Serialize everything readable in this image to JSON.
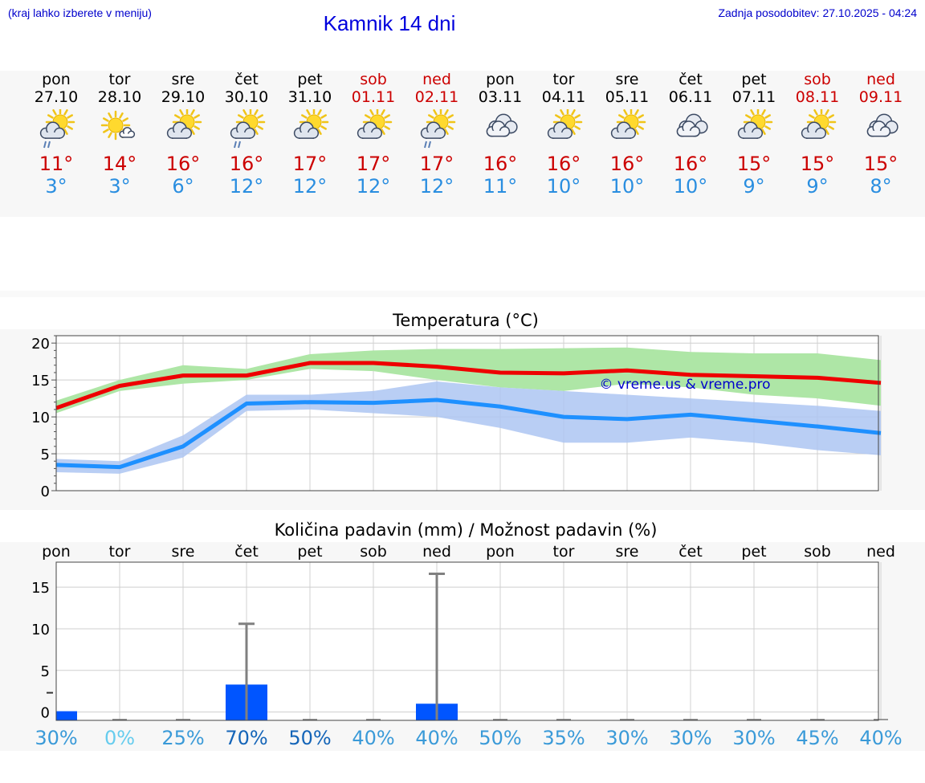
{
  "header": {
    "note": "(kraj lahko izberete v meniju)",
    "title": "Kamnik 14 dni",
    "updated": "Zadnja posodobitev: 27.10.2025 - 04:24"
  },
  "days": [
    {
      "name": "pon",
      "date": "27.10",
      "weekend": false,
      "icon": "partly-sunny-drizzle-icon",
      "tmax": "11°",
      "tmin": "3°"
    },
    {
      "name": "tor",
      "date": "28.10",
      "weekend": false,
      "icon": "sun-small-cloud-icon",
      "tmax": "14°",
      "tmin": "3°"
    },
    {
      "name": "sre",
      "date": "29.10",
      "weekend": false,
      "icon": "partly-sunny-icon",
      "tmax": "16°",
      "tmin": "6°"
    },
    {
      "name": "čet",
      "date": "30.10",
      "weekend": false,
      "icon": "partly-sunny-drizzle-icon",
      "tmax": "16°",
      "tmin": "12°"
    },
    {
      "name": "pet",
      "date": "31.10",
      "weekend": false,
      "icon": "partly-sunny-icon",
      "tmax": "17°",
      "tmin": "12°"
    },
    {
      "name": "sob",
      "date": "01.11",
      "weekend": true,
      "icon": "partly-sunny-icon",
      "tmax": "17°",
      "tmin": "12°"
    },
    {
      "name": "ned",
      "date": "02.11",
      "weekend": true,
      "icon": "partly-sunny-drizzle-icon",
      "tmax": "17°",
      "tmin": "12°"
    },
    {
      "name": "pon",
      "date": "03.11",
      "weekend": false,
      "icon": "cloudy-icon",
      "tmax": "16°",
      "tmin": "11°"
    },
    {
      "name": "tor",
      "date": "04.11",
      "weekend": false,
      "icon": "partly-sunny-icon",
      "tmax": "16°",
      "tmin": "10°"
    },
    {
      "name": "sre",
      "date": "05.11",
      "weekend": false,
      "icon": "partly-sunny-icon",
      "tmax": "16°",
      "tmin": "10°"
    },
    {
      "name": "čet",
      "date": "06.11",
      "weekend": false,
      "icon": "cloudy-icon",
      "tmax": "16°",
      "tmin": "10°"
    },
    {
      "name": "pet",
      "date": "07.11",
      "weekend": false,
      "icon": "partly-sunny-icon",
      "tmax": "15°",
      "tmin": "9°"
    },
    {
      "name": "sob",
      "date": "08.11",
      "weekend": true,
      "icon": "partly-sunny-icon",
      "tmax": "15°",
      "tmin": "9°"
    },
    {
      "name": "ned",
      "date": "09.11",
      "weekend": true,
      "icon": "cloudy-icon",
      "tmax": "15°",
      "tmin": "8°"
    }
  ],
  "chart_data": [
    {
      "type": "line",
      "title": "Temperatura (°C)",
      "xlabel": "",
      "ylabel": "",
      "ylim": [
        0,
        21
      ],
      "yticks": [
        0,
        5,
        10,
        15,
        20
      ],
      "x": [
        0,
        1,
        2,
        3,
        4,
        5,
        6,
        7,
        8,
        9,
        10,
        11,
        12,
        13
      ],
      "watermark": "© vreme.us & vreme.pro",
      "colors": {
        "max": "#ee0000",
        "min": "#1e90ff",
        "max_band": "#aee6a6",
        "min_band": "#adc6f2",
        "overlap": "#7fb8a8"
      },
      "series": [
        {
          "name": "max",
          "values": [
            11.2,
            14.2,
            15.6,
            15.6,
            17.3,
            17.3,
            16.8,
            16.0,
            15.9,
            16.3,
            15.7,
            15.5,
            15.3,
            14.6
          ]
        },
        {
          "name": "min",
          "values": [
            3.5,
            3.2,
            6.0,
            11.8,
            12.0,
            11.9,
            12.3,
            11.4,
            10.0,
            9.7,
            10.3,
            9.5,
            8.7,
            7.8
          ]
        }
      ],
      "bands": [
        {
          "name": "max_range",
          "lower": [
            10.5,
            13.5,
            14.5,
            15.0,
            16.5,
            16.2,
            15.0,
            14.0,
            13.5,
            14.5,
            14.0,
            13.0,
            12.5,
            11.5
          ],
          "upper": [
            12.2,
            15.0,
            17.0,
            16.5,
            18.5,
            19.0,
            19.2,
            19.2,
            19.3,
            19.4,
            18.8,
            18.6,
            18.6,
            17.7
          ]
        },
        {
          "name": "min_range",
          "lower": [
            2.5,
            2.3,
            4.5,
            10.8,
            11.0,
            10.5,
            10.0,
            8.5,
            6.5,
            6.5,
            7.2,
            6.5,
            5.5,
            4.8
          ],
          "upper": [
            4.3,
            4.0,
            7.5,
            13.0,
            13.0,
            13.5,
            14.8,
            14.0,
            13.5,
            13.0,
            12.5,
            12.0,
            11.5,
            10.8
          ]
        }
      ]
    },
    {
      "type": "bar",
      "title": "Količina padavin (mm) / Možnost padavin (%)",
      "xlabel": "",
      "ylabel": "",
      "ylim": [
        -1,
        18
      ],
      "yticks": [
        0,
        5,
        10,
        15
      ],
      "categories": [
        "pon",
        "tor",
        "sre",
        "čet",
        "pet",
        "sob",
        "ned",
        "pon",
        "tor",
        "sre",
        "čet",
        "pet",
        "sob",
        "ned"
      ],
      "colors": {
        "bar": "#0055ff",
        "whisker": "#808080"
      },
      "series": [
        {
          "name": "amount_mm",
          "values": [
            0.1,
            0,
            0,
            3.3,
            0,
            0,
            1.0,
            0,
            0,
            0,
            0,
            0,
            0,
            0
          ]
        },
        {
          "name": "max_mm",
          "values": [
            0.1,
            0,
            0,
            10.6,
            0,
            0,
            16.6,
            0,
            0,
            0,
            0,
            0,
            0,
            0
          ]
        }
      ],
      "probability": [
        "30%",
        "0%",
        "25%",
        "70%",
        "50%",
        "40%",
        "40%",
        "50%",
        "35%",
        "30%",
        "30%",
        "30%",
        "45%",
        "40%"
      ],
      "probability_colors": [
        "#3a9ad8",
        "#66ccee",
        "#3a9ad8",
        "#1565b8",
        "#1565b8",
        "#3a9ad8",
        "#3a9ad8",
        "#3a9ad8",
        "#3a9ad8",
        "#3a9ad8",
        "#3a9ad8",
        "#3a9ad8",
        "#3a9ad8",
        "#3a9ad8"
      ]
    }
  ]
}
